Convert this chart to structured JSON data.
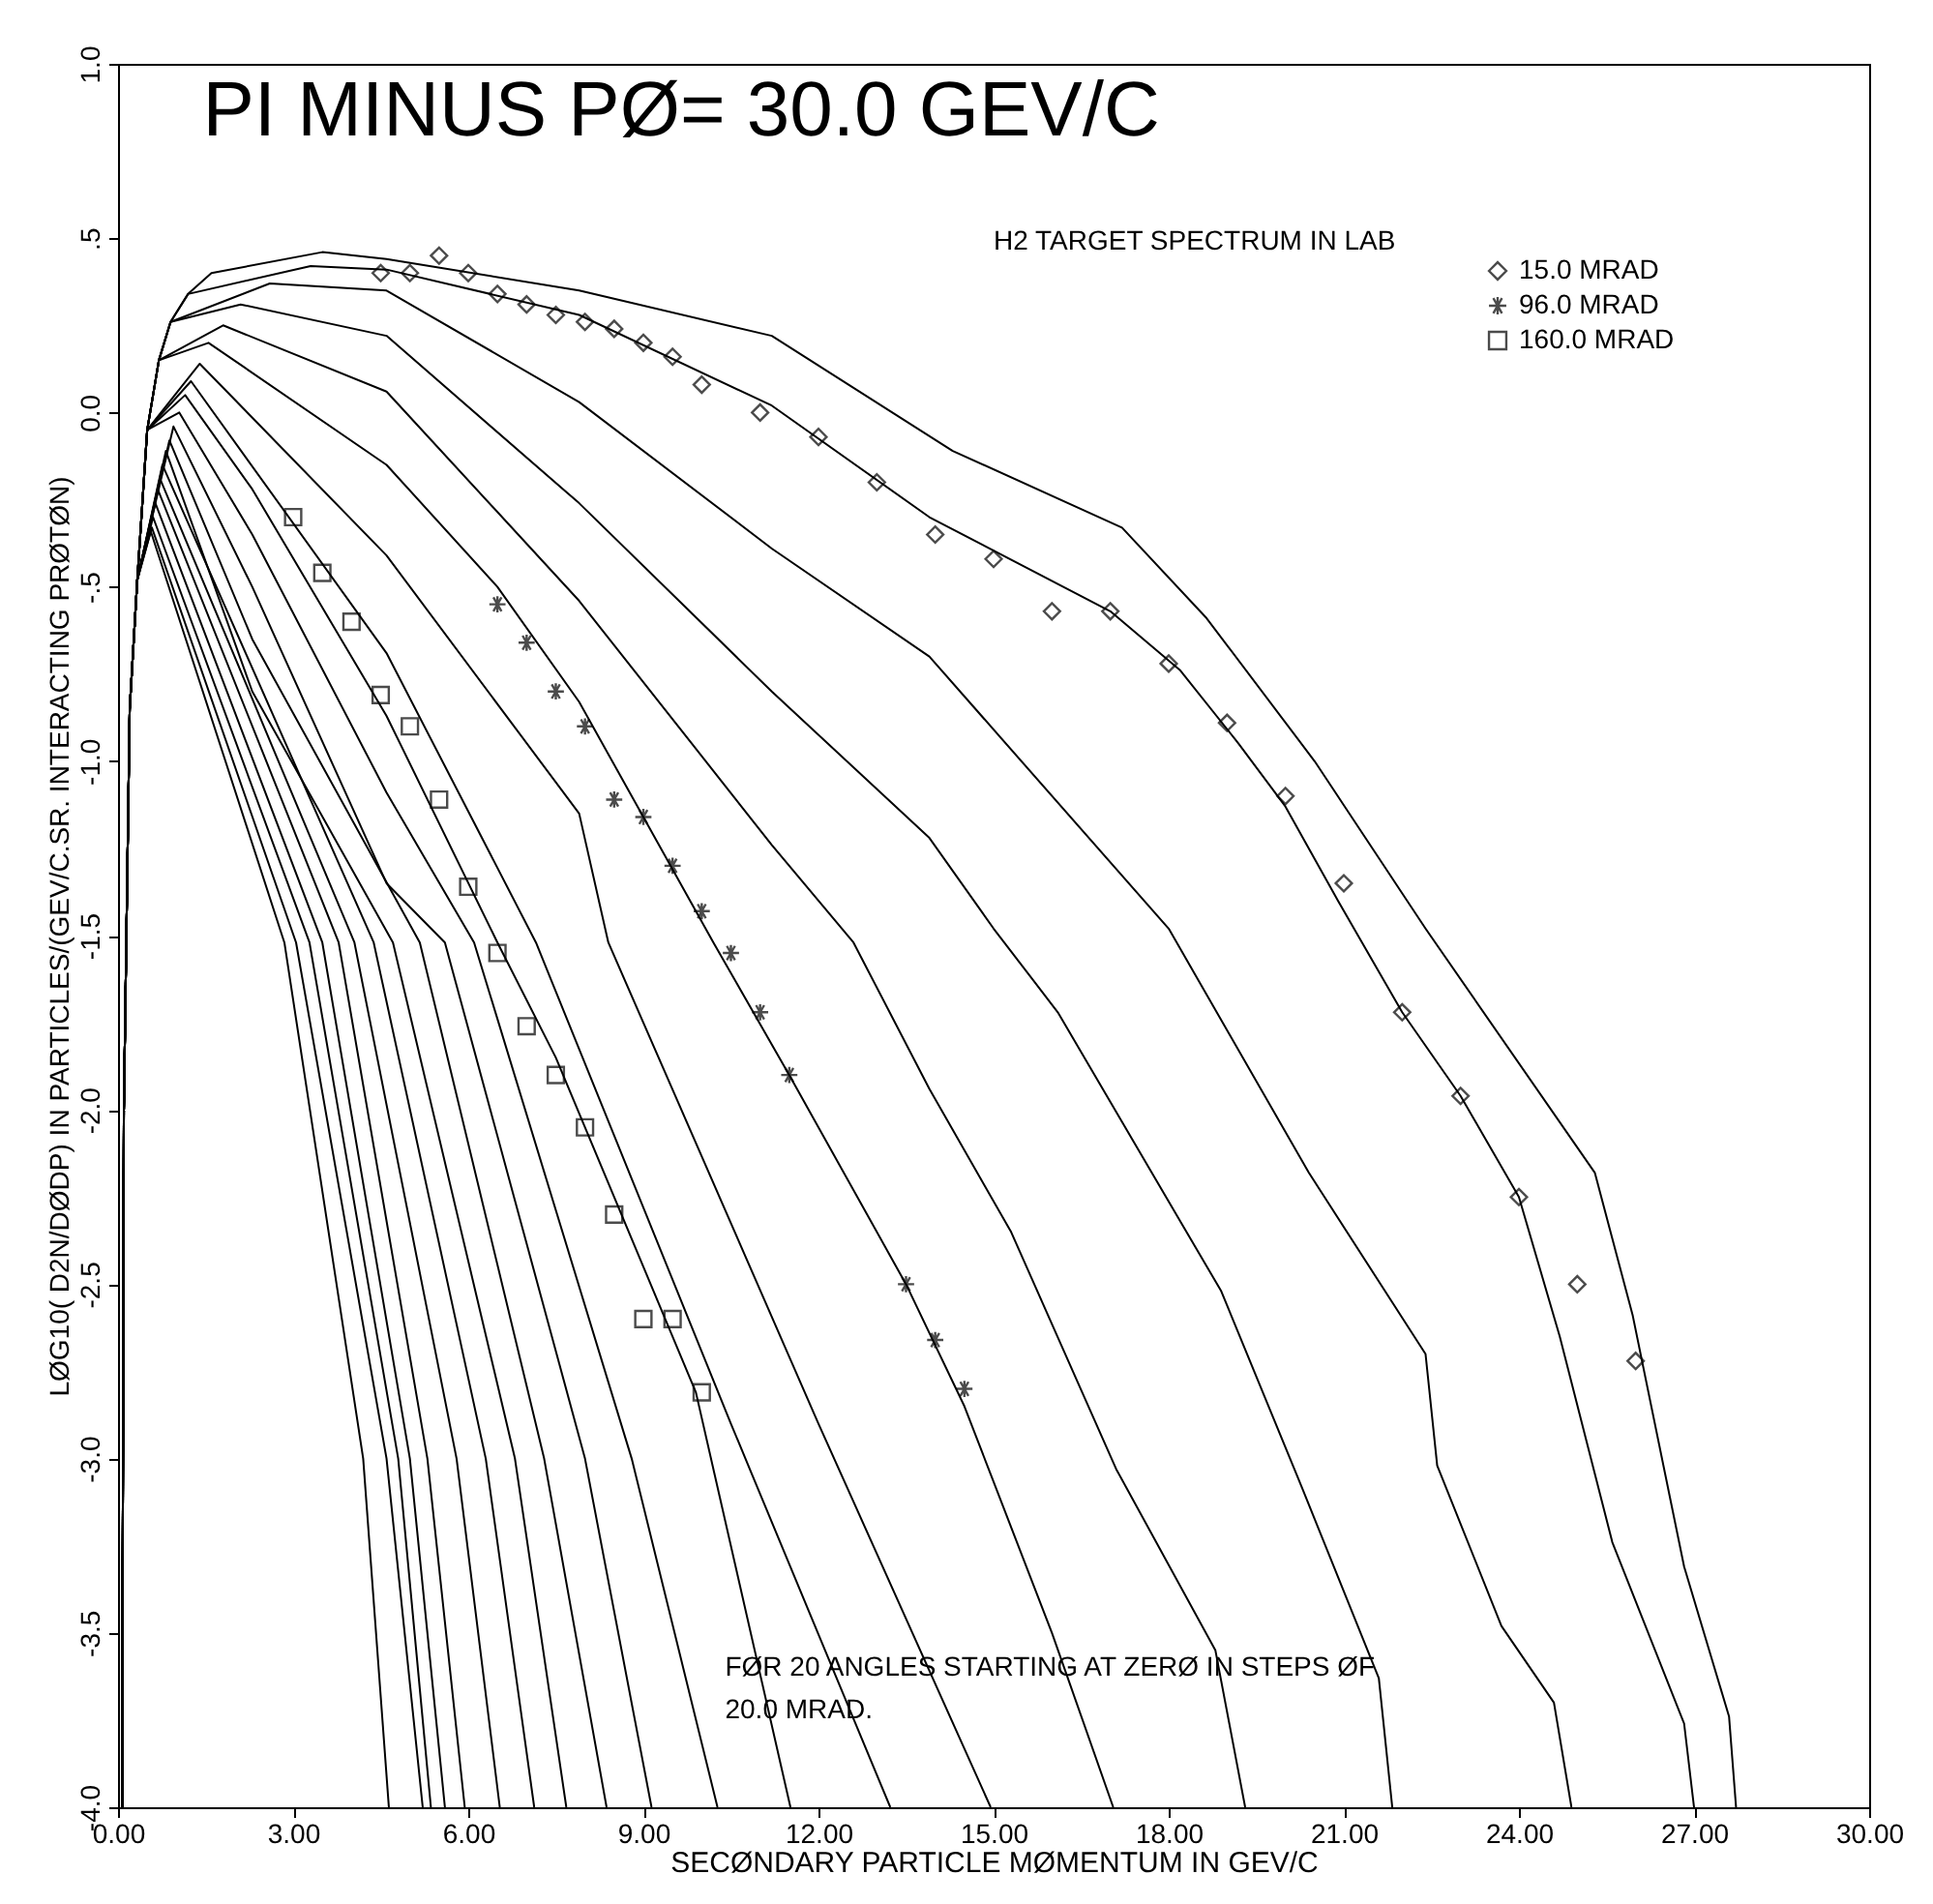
{
  "chart_data": {
    "type": "line",
    "title": "PI MINUS PØ= 30.0   GEV/C",
    "xlabel": "SECØNDARY PARTICLE MØMENTUM IN GEV/C",
    "ylabel": "LØG10( D2N/DØDP)  IN PARTICLES/(GEV/C.SR. INTERACTING PRØTØN)",
    "annotations": [
      "H2  TARGET SPECTRUM IN LAB",
      "FØR 20 ANGLES STARTING AT ZERØ IN STEPS ØF\n20.0   MRAD."
    ],
    "xlim": [
      0,
      30
    ],
    "ylim": [
      -4,
      1
    ],
    "xticks": [
      {
        "value": 0,
        "label": "0.00"
      },
      {
        "value": 3,
        "label": "3.00"
      },
      {
        "value": 6,
        "label": "6.00"
      },
      {
        "value": 9,
        "label": "9.00"
      },
      {
        "value": 12,
        "label": "12.00"
      },
      {
        "value": 15,
        "label": "15.00"
      },
      {
        "value": 18,
        "label": "18.00"
      },
      {
        "value": 21,
        "label": "21.00"
      },
      {
        "value": 24,
        "label": "24.00"
      },
      {
        "value": 27,
        "label": "27.00"
      },
      {
        "value": 30,
        "label": "30.00"
      }
    ],
    "yticks": [
      {
        "value": 1,
        "label": "1.0"
      },
      {
        "value": 0.5,
        "label": ".5"
      },
      {
        "value": 0,
        "label": "0.0"
      },
      {
        "value": -0.5,
        "label": "-.5"
      },
      {
        "value": -1,
        "label": "-1.0"
      },
      {
        "value": -1.5,
        "label": "-1.5"
      },
      {
        "value": -2,
        "label": "-2.0"
      },
      {
        "value": -2.5,
        "label": "-2.5"
      },
      {
        "value": -3,
        "label": "-3.0"
      },
      {
        "value": -3.5,
        "label": "-3.5"
      },
      {
        "value": -4,
        "label": "-4.0"
      }
    ],
    "legend": "top right",
    "series": [
      {
        "type": "line",
        "color": "#000000",
        "x": [
          0.07,
          0.1,
          0.2,
          0.33,
          0.5,
          0.7,
          0.9,
          1.2,
          1.6,
          3.5,
          4.6,
          7.9,
          11.2,
          14.3,
          17.2,
          18.65,
          20.5,
          22.4,
          25.3,
          25.95,
          26.83,
          27.6,
          27.72
        ],
        "values": [
          -4,
          -2.0,
          -0.85,
          -0.48,
          -0.05,
          0.15,
          0.26,
          0.34,
          0.4,
          0.46,
          0.44,
          0.35,
          0.22,
          -0.11,
          -0.33,
          -0.59,
          -1.0,
          -1.48,
          -2.18,
          -2.59,
          -3.31,
          -3.74,
          -4
        ]
      },
      {
        "type": "line",
        "color": "#000000",
        "x": [
          0.07,
          0.1,
          0.2,
          0.33,
          0.5,
          0.7,
          0.9,
          1.2,
          3.3,
          4.6,
          7.9,
          11.2,
          13.9,
          17,
          18.2,
          19.2,
          20,
          20.9,
          22,
          23,
          24,
          24.7,
          25.6,
          26.83,
          27.0
        ],
        "values": [
          -4,
          -2.0,
          -0.85,
          -0.48,
          -0.05,
          0.15,
          0.26,
          0.34,
          0.42,
          0.41,
          0.28,
          0.02,
          -0.3,
          -0.57,
          -0.74,
          -0.95,
          -1.13,
          -1.4,
          -1.72,
          -1.96,
          -2.25,
          -2.65,
          -3.24,
          -3.76,
          -4
        ]
      },
      {
        "type": "line",
        "color": "#000000",
        "x": [
          0.07,
          0.1,
          0.2,
          0.33,
          0.5,
          0.7,
          0.9,
          2.6,
          4.6,
          7.9,
          11.2,
          13.9,
          18.0,
          20.4,
          22.4,
          22.6,
          23.7,
          24.6,
          24.9
        ],
        "values": [
          -4,
          -2.0,
          -0.85,
          -0.48,
          -0.05,
          0.15,
          0.26,
          0.37,
          0.35,
          0.03,
          -0.39,
          -0.7,
          -1.48,
          -2.18,
          -2.7,
          -3.02,
          -3.48,
          -3.7,
          -4
        ]
      },
      {
        "type": "line",
        "color": "#000000",
        "x": [
          0.07,
          0.1,
          0.2,
          0.33,
          0.5,
          0.7,
          0.9,
          2.1,
          4.6,
          7.9,
          11.2,
          13.9,
          15,
          16.1,
          18.9,
          20.3,
          21.6,
          21.83
        ],
        "values": [
          -4,
          -2.0,
          -0.85,
          -0.48,
          -0.05,
          0.15,
          0.26,
          0.31,
          0.22,
          -0.26,
          -0.8,
          -1.22,
          -1.48,
          -1.72,
          -2.52,
          -3.09,
          -3.63,
          -4
        ]
      },
      {
        "type": "line",
        "color": "#000000",
        "x": [
          0.07,
          0.1,
          0.2,
          0.33,
          0.5,
          0.7,
          1.8,
          4.6,
          7.9,
          11.2,
          12.6,
          13.9,
          15.3,
          17.1,
          18.8,
          19.31
        ],
        "values": [
          -4,
          -2.0,
          -0.85,
          -0.48,
          -0.05,
          0.15,
          0.25,
          0.06,
          -0.54,
          -1.24,
          -1.52,
          -1.94,
          -2.35,
          -3.03,
          -3.55,
          -4
        ]
      },
      {
        "type": "line",
        "color": "#000000",
        "x": [
          0.07,
          0.1,
          0.2,
          0.33,
          0.5,
          0.7,
          1.55,
          4.6,
          6.5,
          7.9,
          10.2,
          11.5,
          13.5,
          14.5,
          16,
          17.05
        ],
        "values": [
          -4,
          -2.0,
          -0.85,
          -0.48,
          -0.05,
          0.15,
          0.2,
          -0.15,
          -0.5,
          -0.83,
          -1.52,
          -1.9,
          -2.5,
          -2.85,
          -3.5,
          -4
        ]
      },
      {
        "type": "line",
        "color": "#000000",
        "x": [
          0.07,
          0.1,
          0.2,
          0.33,
          0.5,
          1.4,
          4.6,
          7.9,
          8.4,
          12.0,
          14.95
        ],
        "values": [
          -4,
          -2.0,
          -0.85,
          -0.48,
          -0.05,
          0.14,
          -0.41,
          -1.15,
          -1.52,
          -2.9,
          -4
        ]
      },
      {
        "type": "line",
        "color": "#000000",
        "x": [
          0.07,
          0.1,
          0.2,
          0.33,
          0.5,
          1.25,
          4.6,
          7.16,
          10.5,
          13.23
        ],
        "values": [
          -4,
          -2.0,
          -0.85,
          -0.48,
          -0.05,
          0.09,
          -0.69,
          -1.52,
          -2.9,
          -4
        ]
      },
      {
        "type": "line",
        "color": "#000000",
        "x": [
          0.07,
          0.1,
          0.2,
          0.33,
          0.5,
          1.15,
          2.3,
          4.6,
          6.5,
          7.5,
          9.9,
          11.52
        ],
        "values": [
          -4,
          -2.0,
          -0.85,
          -0.48,
          -0.05,
          0.05,
          -0.22,
          -0.87,
          -1.52,
          -1.85,
          -2.81,
          -4
        ]
      },
      {
        "type": "line",
        "color": "#000000",
        "x": [
          0.07,
          0.1,
          0.2,
          0.33,
          0.5,
          1.05,
          2.3,
          4.6,
          6.1,
          8.8,
          10.27
        ],
        "values": [
          -4,
          -2.0,
          -0.85,
          -0.48,
          -0.05,
          0.0,
          -0.35,
          -1.09,
          -1.52,
          -3.0,
          -4
        ]
      },
      {
        "type": "line",
        "color": "#000000",
        "x": [
          0.07,
          0.1,
          0.2,
          0.33,
          0.95,
          2.3,
          4.6,
          5.6,
          8.0,
          9.14
        ],
        "values": [
          -4,
          -2.0,
          -0.85,
          -0.48,
          -0.04,
          -0.5,
          -1.35,
          -1.52,
          -3.0,
          -4
        ]
      },
      {
        "type": "line",
        "color": "#000000",
        "x": [
          0.07,
          0.1,
          0.2,
          0.33,
          0.88,
          2.3,
          5.17,
          7.3,
          8.37
        ],
        "values": [
          -4,
          -2.0,
          -0.85,
          -0.48,
          -0.08,
          -0.65,
          -1.52,
          -3.0,
          -4
        ]
      },
      {
        "type": "line",
        "color": "#000000",
        "x": [
          0.07,
          0.1,
          0.2,
          0.33,
          0.82,
          2.3,
          4.71,
          6.8,
          7.68
        ],
        "values": [
          -4,
          -2.0,
          -0.85,
          -0.48,
          -0.11,
          -0.8,
          -1.52,
          -3.0,
          -4
        ]
      },
      {
        "type": "line",
        "color": "#000000",
        "x": [
          0.07,
          0.1,
          0.2,
          0.33,
          0.76,
          4.38,
          6.3,
          7.13
        ],
        "values": [
          -4,
          -2.0,
          -0.85,
          -0.48,
          -0.15,
          -1.52,
          -3.0,
          -4
        ]
      },
      {
        "type": "line",
        "color": "#000000",
        "x": [
          0.07,
          0.1,
          0.2,
          0.33,
          0.72,
          4.05,
          5.8,
          6.54
        ],
        "values": [
          -4,
          -2.0,
          -0.85,
          -0.48,
          -0.19,
          -1.52,
          -3.0,
          -4
        ]
      },
      {
        "type": "line",
        "color": "#000000",
        "x": [
          0.07,
          0.1,
          0.2,
          0.33,
          0.68,
          3.78,
          5.3,
          5.94
        ],
        "values": [
          -4,
          -2.0,
          -0.85,
          -0.48,
          -0.22,
          -1.52,
          -3.0,
          -4
        ]
      },
      {
        "type": "line",
        "color": "#000000",
        "x": [
          0.07,
          0.1,
          0.2,
          0.33,
          0.64,
          3.5,
          5.0,
          5.6
        ],
        "values": [
          -4,
          -2.0,
          -0.85,
          -0.48,
          -0.26,
          -1.52,
          -3.0,
          -4
        ]
      },
      {
        "type": "line",
        "color": "#000000",
        "x": [
          0.07,
          0.1,
          0.2,
          0.33,
          0.6,
          3.28,
          4.8,
          5.36
        ],
        "values": [
          -4,
          -2.0,
          -0.85,
          -0.48,
          -0.3,
          -1.52,
          -3.0,
          -4
        ]
      },
      {
        "type": "line",
        "color": "#000000",
        "x": [
          0.07,
          0.1,
          0.2,
          0.33,
          0.58,
          3.05,
          4.6,
          5.22
        ],
        "values": [
          -4,
          -2.0,
          -0.85,
          -0.48,
          -0.33,
          -1.52,
          -3.0,
          -4
        ]
      },
      {
        "type": "line",
        "color": "#000000",
        "x": [
          0.07,
          0.1,
          0.2,
          0.33,
          0.56,
          2.85,
          4.2,
          4.64
        ],
        "values": [
          -4,
          -2.0,
          -0.85,
          -0.48,
          -0.34,
          -1.52,
          -3.0,
          -4
        ]
      },
      {
        "type": "scatter",
        "name": "15.0 MRAD",
        "color": "#000000",
        "marker": "diamond",
        "x": [
          4.5,
          5.0,
          5.5,
          6.0,
          6.5,
          7.0,
          7.5,
          8.0,
          8.5,
          9.0,
          9.5,
          10.0,
          11.0,
          12.0,
          13.0,
          14.0,
          15.0,
          16.0,
          17.0,
          18.0,
          19.0,
          20.0,
          21.0,
          22.0,
          23.0,
          24.0,
          25.0,
          26.0
        ],
        "values": [
          0.4,
          0.4,
          0.45,
          0.4,
          0.34,
          0.31,
          0.28,
          0.26,
          0.24,
          0.2,
          0.16,
          0.08,
          0.0,
          -0.07,
          -0.2,
          -0.35,
          -0.42,
          -0.57,
          -0.57,
          -0.72,
          -0.89,
          -1.1,
          -1.35,
          -1.72,
          -1.96,
          -2.25,
          -2.5,
          -2.72
        ]
      },
      {
        "type": "scatter",
        "name": "96.0 MRAD",
        "color": "#000000",
        "marker": "cross",
        "x": [
          6.5,
          7.0,
          7.5,
          8.0,
          8.5,
          9.0,
          9.5,
          10.0,
          10.5,
          11.0,
          11.5,
          13.5,
          14.0,
          14.5
        ],
        "values": [
          -0.55,
          -0.66,
          -0.8,
          -0.9,
          -1.11,
          -1.16,
          -1.3,
          -1.43,
          -1.55,
          -1.72,
          -1.9,
          -2.5,
          -2.66,
          -2.8
        ]
      },
      {
        "type": "scatter",
        "name": "160.0 MRAD",
        "color": "#000000",
        "marker": "square",
        "x": [
          3.0,
          3.5,
          4.0,
          4.5,
          5.0,
          5.5,
          6.0,
          6.5,
          7.0,
          7.5,
          8.0,
          8.5,
          9.0,
          9.5,
          10.0
        ],
        "values": [
          -0.3,
          -0.46,
          -0.6,
          -0.81,
          -0.9,
          -1.11,
          -1.36,
          -1.55,
          -1.76,
          -1.9,
          -2.05,
          -2.3,
          -2.6,
          -2.6,
          -2.81
        ]
      }
    ]
  }
}
